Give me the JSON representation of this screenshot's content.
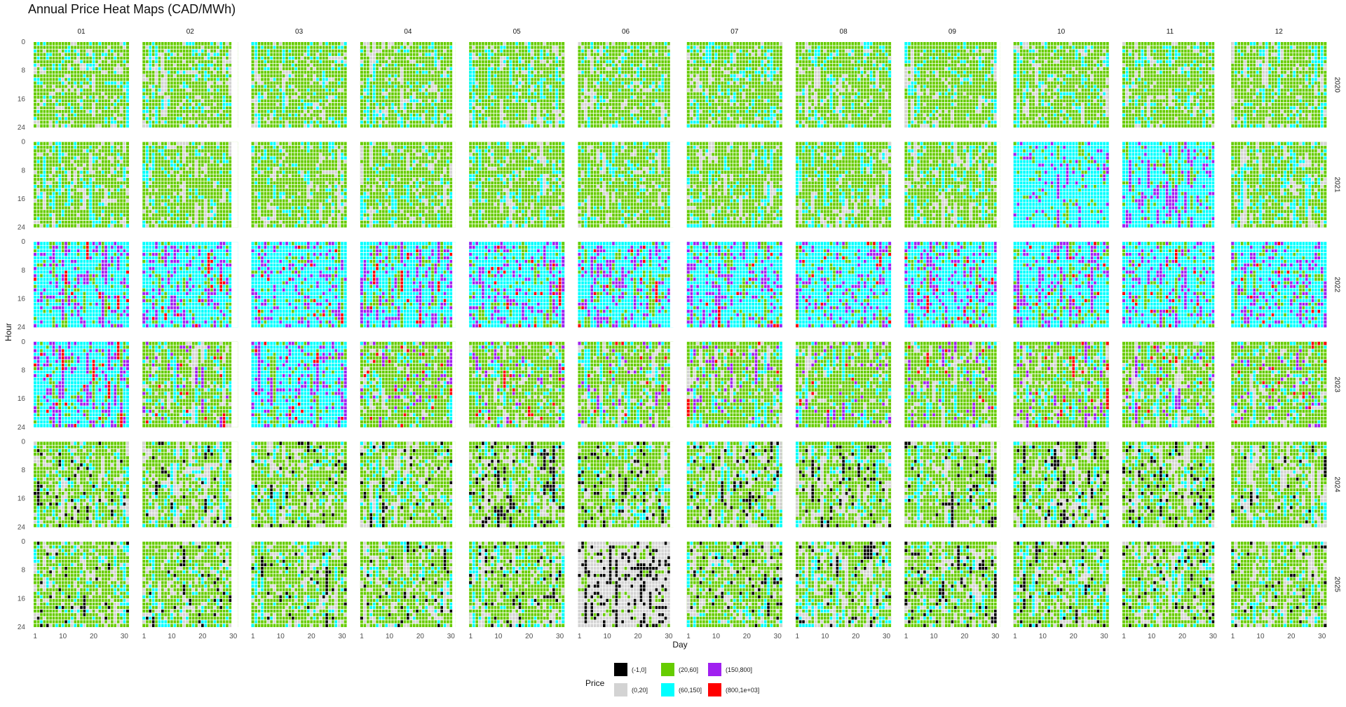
{
  "chart_data": {
    "type": "heatmap",
    "title": "Annual Price Heat Maps (CAD/MWh)",
    "xlabel": "Day",
    "ylabel": "Hour",
    "x_ticks": [
      "1",
      "10",
      "20",
      "30"
    ],
    "y_ticks": [
      "0",
      "8",
      "16",
      "24"
    ],
    "xlim": [
      1,
      31
    ],
    "ylim": [
      0,
      24
    ],
    "months": [
      "01",
      "02",
      "03",
      "04",
      "05",
      "06",
      "07",
      "08",
      "09",
      "10",
      "11",
      "12"
    ],
    "years": [
      "2020",
      "2021",
      "2022",
      "2023",
      "2024",
      "2025"
    ],
    "legend": {
      "title": "Price",
      "position": "bottom",
      "items": [
        {
          "label": "(-1,0]",
          "color": "#000000"
        },
        {
          "label": "(0,20]",
          "color": "#d3d3d3"
        },
        {
          "label": "(20,60]",
          "color": "#66cc00"
        },
        {
          "label": "(60,150]",
          "color": "#00ffff"
        },
        {
          "label": "(150,800]",
          "color": "#a020f0"
        },
        {
          "label": "(800,1e+03]",
          "color": "#ff0000"
        }
      ]
    },
    "dominant_bins": {
      "2020": [
        "(20,60]",
        "(20,60]",
        "(20,60]",
        "(20,60]",
        "(20,60]",
        "(20,60]",
        "(20,60]",
        "(20,60]",
        "(20,60]",
        "(20,60]",
        "(20,60]",
        "(20,60]"
      ],
      "2021": [
        "(20,60]",
        "(20,60]",
        "(20,60]",
        "(20,60]",
        "(20,60]",
        "(20,60]",
        "(20,60]",
        "(20,60]",
        "(20,60]",
        "(60,150]",
        "(60,150]",
        "(20,60]"
      ],
      "2022": [
        "(60,150]",
        "(60,150]",
        "(60,150]",
        "(60,150]",
        "(60,150]",
        "(60,150]",
        "(60,150]",
        "(60,150]",
        "(60,150]",
        "(60,150]",
        "(60,150]",
        "(60,150]"
      ],
      "2023": [
        "(60,150]",
        "(20,60]",
        "(60,150]",
        "(20,60]",
        "(20,60]",
        "(20,60]",
        "(20,60]",
        "(20,60]",
        "(20,60]",
        "(20,60]",
        "(20,60]",
        "(20,60]"
      ],
      "2024": [
        "(20,60]",
        "(20,60]",
        "(20,60]",
        "(20,60]",
        "(20,60]",
        "(20,60]",
        "(20,60]",
        "(20,60]",
        "(20,60]",
        "(20,60]",
        "(20,60]",
        "(20,60]"
      ],
      "2025": [
        "(20,60]",
        "(20,60]",
        "(20,60]",
        "(20,60]",
        "(20,60]",
        "(0,20]",
        "(20,60]",
        "(20,60]",
        "(20,60]",
        "(20,60]",
        "(20,60]",
        "(20,60]"
      ]
    },
    "grid": false
  }
}
